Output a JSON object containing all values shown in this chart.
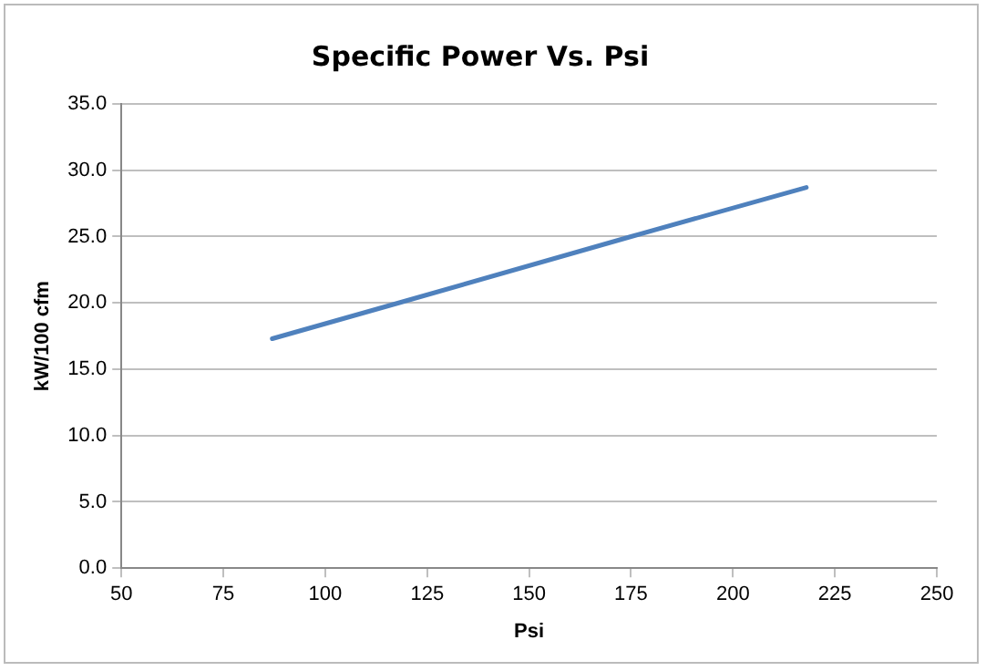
{
  "chart_data": {
    "type": "line",
    "title": "Specific Power Vs. Psi",
    "xlabel": "Psi",
    "ylabel": "kW/100 cfm",
    "x": [
      87,
      118,
      175,
      218
    ],
    "series": [
      {
        "color": "#4f81bd",
        "values": [
          17.3,
          20.0,
          25.0,
          28.7
        ]
      }
    ],
    "xlim": [
      50,
      250
    ],
    "xticks": [
      50,
      75,
      100,
      125,
      150,
      175,
      200,
      225,
      250
    ],
    "ylim": [
      0,
      35
    ],
    "yticks": [
      {
        "value": 0,
        "label": "0.0"
      },
      {
        "value": 5,
        "label": "5.0"
      },
      {
        "value": 10,
        "label": "10.0"
      },
      {
        "value": 15,
        "label": "15.0"
      },
      {
        "value": 20,
        "label": "20.0"
      },
      {
        "value": 25,
        "label": "25.0"
      },
      {
        "value": 30,
        "label": "30.0"
      },
      {
        "value": 35,
        "label": "35.0"
      }
    ],
    "grid": "y",
    "legend": false,
    "marker": "none",
    "line_style": "solid"
  }
}
